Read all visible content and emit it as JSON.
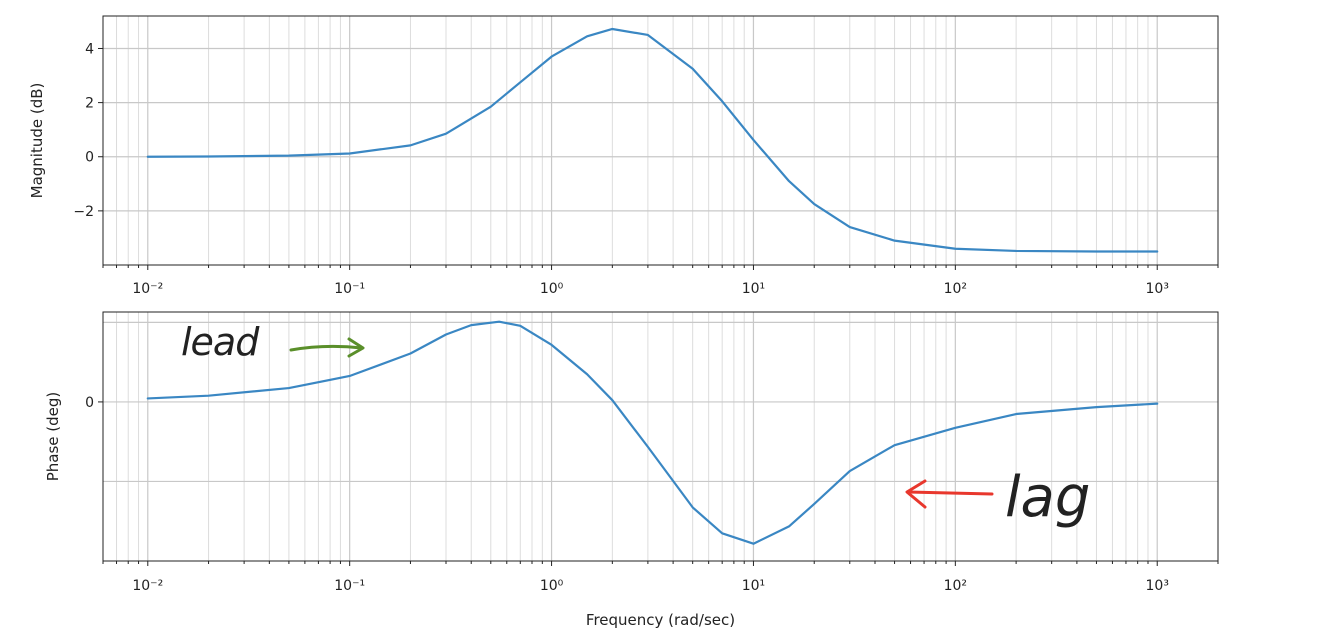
{
  "chart_data": [
    {
      "type": "line",
      "ylabel": "Magnitude (dB)",
      "x_scale": "log",
      "xlim": [
        0.006,
        2000
      ],
      "ylim": [
        -4.0,
        5.2
      ],
      "x_ticks": [
        0.01,
        0.1,
        1,
        10,
        100,
        1000
      ],
      "x_tick_labels": [
        "10⁻²",
        "10⁻¹",
        "10⁰",
        "10¹",
        "10²",
        "10³"
      ],
      "y_ticks": [
        4,
        2,
        0,
        -2
      ],
      "y_tick_labels": [
        "4",
        "2",
        "0",
        "−2"
      ],
      "grid": true,
      "series": [
        {
          "color": "#3a87c3",
          "x": [
            0.01,
            0.02,
            0.05,
            0.1,
            0.2,
            0.3,
            0.5,
            0.7,
            1,
            1.5,
            2,
            3,
            5,
            7,
            10,
            15,
            20,
            30,
            50,
            100,
            200,
            500,
            1000
          ],
          "y": [
            0.0,
            0.01,
            0.04,
            0.12,
            0.42,
            0.85,
            1.85,
            2.75,
            3.7,
            4.45,
            4.72,
            4.5,
            3.25,
            2.05,
            0.62,
            -0.9,
            -1.75,
            -2.6,
            -3.1,
            -3.4,
            -3.48,
            -3.5,
            -3.5
          ]
        }
      ]
    },
    {
      "type": "line",
      "xlabel": "Frequency (rad/sec)",
      "ylabel": "Phase (deg)",
      "x_scale": "log",
      "xlim": [
        0.006,
        2000
      ],
      "ylim": [
        -46,
        26
      ],
      "x_ticks": [
        0.01,
        0.1,
        1,
        10,
        100,
        1000
      ],
      "x_tick_labels": [
        "10⁻²",
        "10⁻¹",
        "10⁰",
        "10¹",
        "10²",
        "10³"
      ],
      "y_ticks": [
        0
      ],
      "y_tick_labels": [
        "0"
      ],
      "y_gridlines": [
        23,
        0,
        -23
      ],
      "grid": true,
      "series": [
        {
          "color": "#3a87c3",
          "x": [
            0.01,
            0.02,
            0.05,
            0.1,
            0.2,
            0.3,
            0.4,
            0.55,
            0.7,
            1,
            1.5,
            2,
            3,
            5,
            7,
            10,
            15,
            20,
            30,
            50,
            100,
            200,
            500,
            1000
          ],
          "y": [
            1.0,
            1.8,
            4.0,
            7.5,
            14.0,
            19.5,
            22.2,
            23.2,
            22.0,
            16.5,
            8.0,
            0.5,
            -13.0,
            -30.5,
            -38.0,
            -41.0,
            -36.0,
            -29.5,
            -20.0,
            -12.5,
            -7.5,
            -3.5,
            -1.5,
            -0.5
          ]
        }
      ],
      "annotations": [
        {
          "text": "lead",
          "color": "#5a8f2a"
        },
        {
          "text": "lag",
          "color": "#e8372d"
        }
      ]
    }
  ]
}
